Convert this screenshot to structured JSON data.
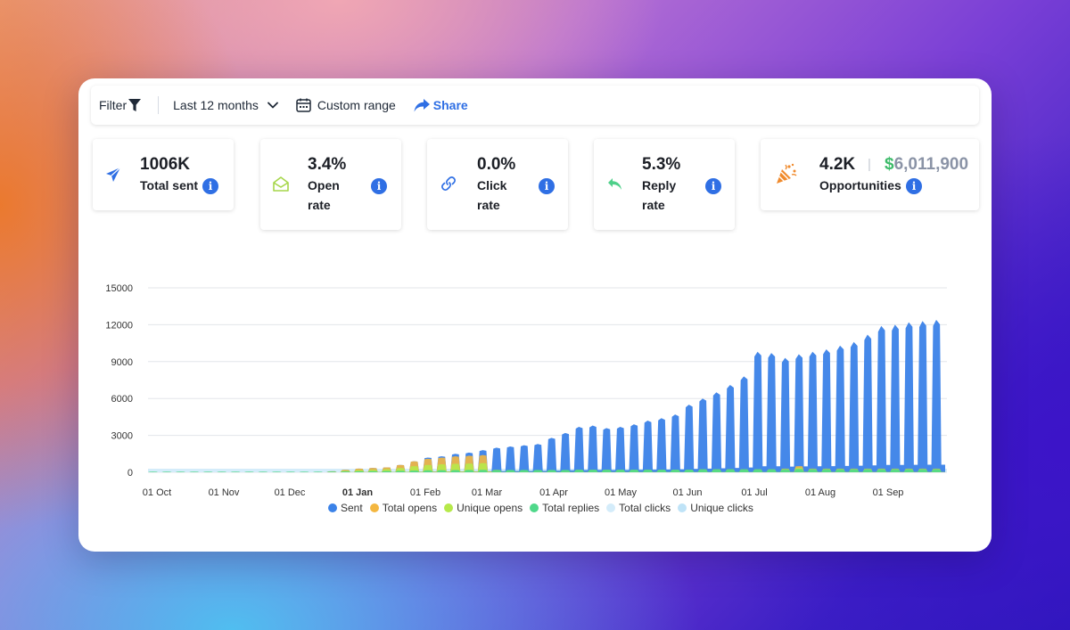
{
  "toolbar": {
    "filter_label": "Filter",
    "range_label": "Last 12 months",
    "custom_label": "Custom range",
    "share_label": "Share"
  },
  "stats": {
    "sent": {
      "value": "1006K",
      "label": "Total sent"
    },
    "open": {
      "value": "3.4%",
      "label_line1": "Open",
      "label_line2": "rate"
    },
    "click": {
      "value": "0.0%",
      "label_line1": "Click",
      "label_line2": "rate"
    },
    "reply": {
      "value": "5.3%",
      "label_line1": "Reply",
      "label_line2": "rate"
    },
    "opps": {
      "value": "4.2K",
      "separator": "|",
      "dollar": "$",
      "amount": "6,011,900",
      "label": "Opportunities"
    }
  },
  "icons": {
    "info": "info-icon",
    "sent": "paper-plane-icon",
    "open": "envelope-open-icon",
    "click": "link-icon",
    "reply": "reply-arrow-icon",
    "opps": "party-popper-icon"
  },
  "colors": {
    "accent": "#2f6fe4",
    "sent": "#3b82e8",
    "total_opens": "#f4b740",
    "unique_opens": "#b6e94a",
    "total_replies": "#4fd88a",
    "total_clicks": "#d4ecfa",
    "unique_clicks": "#bfe3f7",
    "money": "#3dbb6a"
  },
  "chart_data": {
    "type": "area",
    "y_ticks": [
      "15000",
      "12000",
      "9000",
      "6000",
      "3000",
      "0"
    ],
    "ylim": [
      0,
      15000
    ],
    "x_ticks": [
      "01 Oct",
      "01 Nov",
      "01 Dec",
      "01 Jan",
      "01 Feb",
      "01 Mar",
      "01 Apr",
      "01 May",
      "01 Jun",
      "01 Jul",
      "01 Aug",
      "01 Sep"
    ],
    "x_tick_bold": "01 Jan",
    "grid": true,
    "legend_position": "bottom",
    "series": [
      {
        "name": "Sent",
        "weekly_peak": [
          0,
          0,
          0,
          0,
          0,
          0,
          0,
          0,
          0,
          0,
          0,
          0,
          0,
          80,
          200,
          300,
          350,
          400,
          600,
          900,
          1200,
          1300,
          1500,
          1600,
          1800,
          2000,
          2100,
          2200,
          2300,
          2800,
          3200,
          3700,
          3800,
          3600,
          3700,
          3900,
          4200,
          4400,
          4700,
          5500,
          6000,
          6500,
          7100,
          7800,
          9800,
          9700,
          9300,
          9600,
          9800,
          10000,
          10300,
          10600,
          11200,
          11900,
          12000,
          12200,
          12300,
          12400
        ]
      },
      {
        "name": "Total opens",
        "weekly_peak": [
          0,
          0,
          0,
          0,
          0,
          0,
          0,
          0,
          0,
          0,
          0,
          0,
          0,
          80,
          200,
          300,
          350,
          400,
          600,
          900,
          1100,
          1200,
          1300,
          1350,
          1400,
          200,
          150,
          150,
          150,
          150,
          150,
          200,
          200,
          200,
          200,
          200,
          200,
          200,
          200,
          200,
          250,
          250,
          250,
          250,
          250,
          250,
          300,
          500,
          300,
          300,
          300,
          300,
          300,
          300,
          300,
          300,
          300,
          300
        ]
      },
      {
        "name": "Unique opens",
        "weekly_peak": [
          0,
          0,
          0,
          0,
          0,
          0,
          0,
          0,
          0,
          0,
          0,
          0,
          0,
          50,
          120,
          180,
          200,
          250,
          350,
          500,
          600,
          650,
          700,
          720,
          750,
          150,
          120,
          120,
          120,
          120,
          120,
          150,
          150,
          150,
          150,
          150,
          150,
          150,
          150,
          150,
          200,
          200,
          200,
          200,
          200,
          200,
          250,
          350,
          250,
          250,
          250,
          250,
          250,
          250,
          250,
          250,
          250,
          250
        ]
      },
      {
        "name": "Total replies",
        "weekly_peak": [
          50,
          50,
          50,
          50,
          50,
          50,
          50,
          50,
          50,
          50,
          50,
          50,
          50,
          60,
          70,
          80,
          90,
          100,
          120,
          140,
          160,
          170,
          180,
          190,
          200,
          200,
          200,
          200,
          200,
          200,
          200,
          220,
          220,
          220,
          220,
          220,
          220,
          220,
          220,
          220,
          250,
          250,
          250,
          250,
          250,
          250,
          250,
          260,
          260,
          260,
          260,
          260,
          260,
          260,
          260,
          260,
          260,
          260
        ]
      },
      {
        "name": "Total clicks",
        "weekly_peak": []
      },
      {
        "name": "Unique clicks",
        "weekly_peak": []
      }
    ]
  }
}
